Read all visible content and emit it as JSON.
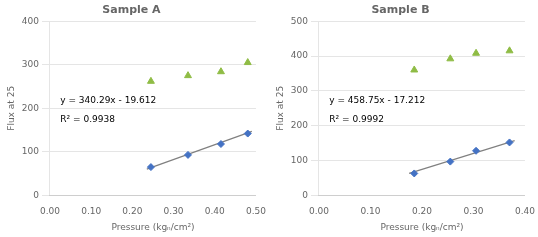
{
  "chart_data": [
    {
      "type": "scatter",
      "title": "Sample A",
      "x_label": "Pressure (kgₙ/cm²)",
      "y_label": "Flux at 25",
      "xlim": [
        0.0,
        0.5
      ],
      "xticks": [
        {
          "value": 0.0,
          "label": "0.00"
        },
        {
          "value": 0.1,
          "label": "0.10"
        },
        {
          "value": 0.2,
          "label": "0.20"
        },
        {
          "value": 0.3,
          "label": "0.30"
        },
        {
          "value": 0.4,
          "label": "0.40"
        },
        {
          "value": 0.5,
          "label": "0.50"
        }
      ],
      "ylim": [
        0,
        400
      ],
      "yticks": [
        0,
        100,
        200,
        300,
        400
      ],
      "grid": "y",
      "annotations": [
        "y = 340.29x - 19.612",
        "R² = 0.9938"
      ],
      "series": [
        {
          "type": "line",
          "color": "#808080",
          "line_style": "solid",
          "x": [
            0.235,
            0.49
          ],
          "values": [
            60.35615,
            147.1301
          ]
        },
        {
          "type": "scatter",
          "color": "#4472c4",
          "marker": "diamond",
          "x": [
            0.245,
            0.335,
            0.415,
            0.48
          ],
          "values": [
            65,
            93,
            118,
            142
          ]
        },
        {
          "type": "scatter",
          "color": "#8fbc45",
          "marker": "triangle",
          "x": [
            0.245,
            0.335,
            0.415,
            0.48
          ],
          "values": [
            262,
            275,
            284,
            305
          ]
        }
      ]
    },
    {
      "type": "scatter",
      "title": "Sample B",
      "x_label": "Pressure (kgₙ/cm²)",
      "y_label": "Flux at 25",
      "xlim": [
        0.0,
        0.4
      ],
      "xticks": [
        {
          "value": 0.0,
          "label": "0.00"
        },
        {
          "value": 0.1,
          "label": "0.10"
        },
        {
          "value": 0.2,
          "label": "0.20"
        },
        {
          "value": 0.3,
          "label": "0.30"
        },
        {
          "value": 0.4,
          "label": "0.40"
        }
      ],
      "ylim": [
        0,
        500
      ],
      "yticks": [
        0,
        100,
        200,
        300,
        400,
        500
      ],
      "grid": "y",
      "annotations": [
        "y = 458.75x - 17.212",
        "R² = 0.9992"
      ],
      "series": [
        {
          "type": "line",
          "color": "#808080",
          "line_style": "solid",
          "x": [
            0.175,
            0.38
          ],
          "values": [
            63.06925,
            157.113
          ]
        },
        {
          "type": "scatter",
          "color": "#4472c4",
          "marker": "diamond",
          "x": [
            0.185,
            0.255,
            0.305,
            0.37
          ],
          "values": [
            63,
            97,
            128,
            152
          ]
        },
        {
          "type": "scatter",
          "color": "#8fbc45",
          "marker": "triangle",
          "x": [
            0.185,
            0.255,
            0.305,
            0.37
          ],
          "values": [
            360,
            392,
            408,
            415
          ]
        }
      ]
    }
  ]
}
